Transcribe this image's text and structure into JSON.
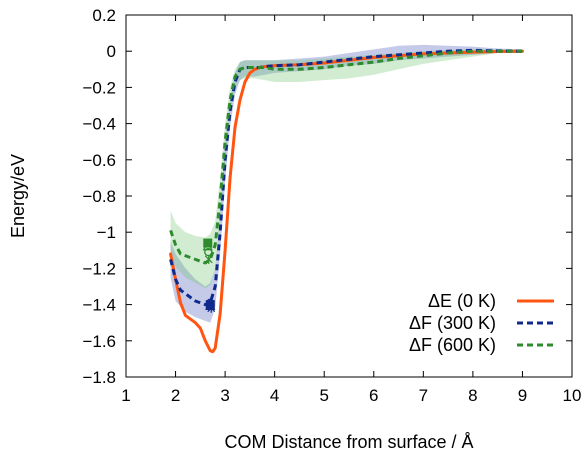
{
  "chart_data": {
    "type": "line",
    "title": "",
    "xlabel": "COM Distance from surface / Å",
    "ylabel": "Energy/eV",
    "xlim": [
      1,
      10
    ],
    "ylim": [
      -1.8,
      0.2
    ],
    "xticks": [
      1,
      2,
      3,
      4,
      5,
      6,
      7,
      8,
      9,
      10
    ],
    "yticks": [
      0.2,
      0,
      -0.2,
      -0.4,
      -0.6,
      -0.8,
      -1,
      -1.2,
      -1.4,
      -1.6,
      -1.8
    ],
    "xtick_labels": [
      "1",
      "2",
      "3",
      "4",
      "5",
      "6",
      "7",
      "8",
      "9",
      "10"
    ],
    "ytick_labels": [
      "0.2",
      "0",
      "−0.2",
      "−0.4",
      "−0.6",
      "−0.8",
      "−1",
      "−1.2",
      "−1.4",
      "−1.6",
      "−1.8"
    ],
    "grid": false,
    "legend_position": "bottom-right",
    "series": [
      {
        "name": "ΔE (0 K)",
        "style": "solid",
        "color": "#ff5511",
        "x": [
          1.9,
          2.0,
          2.1,
          2.2,
          2.3,
          2.4,
          2.5,
          2.6,
          2.7,
          2.75,
          2.8,
          2.9,
          3.0,
          3.1,
          3.2,
          3.3,
          3.4,
          3.5,
          3.6,
          3.7,
          3.8,
          4.0,
          4.5,
          5.0,
          5.5,
          6.0,
          6.5,
          7.0,
          7.5,
          8.0,
          8.5,
          9.0
        ],
        "y": [
          -1.12,
          -1.26,
          -1.39,
          -1.46,
          -1.48,
          -1.5,
          -1.53,
          -1.6,
          -1.655,
          -1.66,
          -1.64,
          -1.45,
          -1.1,
          -0.7,
          -0.42,
          -0.27,
          -0.17,
          -0.12,
          -0.1,
          -0.09,
          -0.085,
          -0.08,
          -0.075,
          -0.065,
          -0.05,
          -0.035,
          -0.025,
          -0.015,
          -0.01,
          -0.005,
          -0.002,
          0.0
        ]
      },
      {
        "name": "ΔF (300 K)",
        "style": "dashed",
        "color": "#102a8c",
        "x": [
          1.9,
          2.0,
          2.1,
          2.2,
          2.3,
          2.4,
          2.5,
          2.6,
          2.7,
          2.8,
          2.9,
          3.0,
          3.1,
          3.2,
          3.3,
          3.4,
          3.5,
          3.6,
          3.7,
          3.8,
          4.0,
          4.5,
          5.0,
          5.5,
          6.0,
          6.5,
          7.0,
          7.5,
          8.0,
          8.5,
          9.0
        ],
        "y": [
          -1.15,
          -1.26,
          -1.32,
          -1.34,
          -1.36,
          -1.38,
          -1.39,
          -1.4,
          -1.39,
          -1.3,
          -1.0,
          -0.6,
          -0.33,
          -0.17,
          -0.1,
          -0.09,
          -0.09,
          -0.09,
          -0.09,
          -0.085,
          -0.08,
          -0.075,
          -0.06,
          -0.045,
          -0.03,
          -0.02,
          -0.01,
          0.0,
          0.005,
          0.002,
          0.0
        ]
      },
      {
        "name": "ΔF (600 K)",
        "style": "dashed",
        "color": "#2e8b2e",
        "x": [
          1.9,
          2.0,
          2.1,
          2.2,
          2.3,
          2.4,
          2.5,
          2.6,
          2.7,
          2.8,
          2.9,
          3.0,
          3.1,
          3.2,
          3.3,
          3.4,
          3.5,
          3.6,
          3.7,
          3.8,
          4.0,
          4.5,
          5.0,
          5.5,
          6.0,
          6.5,
          7.0,
          7.5,
          8.0,
          8.5,
          9.0
        ],
        "y": [
          -0.99,
          -1.07,
          -1.12,
          -1.13,
          -1.14,
          -1.15,
          -1.16,
          -1.17,
          -1.15,
          -1.07,
          -0.82,
          -0.5,
          -0.27,
          -0.14,
          -0.1,
          -0.09,
          -0.09,
          -0.09,
          -0.09,
          -0.09,
          -0.1,
          -0.1,
          -0.09,
          -0.075,
          -0.06,
          -0.04,
          -0.025,
          -0.01,
          0.0,
          0.0,
          0.0
        ]
      }
    ],
    "bands": [
      {
        "series": "ΔF (300 K)",
        "color": "#5566bb",
        "opacity": 0.35,
        "x": [
          1.9,
          2.0,
          2.2,
          2.4,
          2.6,
          2.7,
          2.8,
          2.9,
          3.0,
          3.1,
          3.2,
          3.3,
          3.4,
          3.5,
          3.6,
          3.8,
          4.0,
          4.5,
          5.0,
          5.5,
          6.0,
          6.5,
          7.0,
          7.5,
          8.0,
          8.5,
          9.0
        ],
        "upper": [
          -1.05,
          -1.12,
          -1.2,
          -1.26,
          -1.3,
          -1.28,
          -1.2,
          -0.9,
          -0.52,
          -0.27,
          -0.12,
          -0.06,
          -0.05,
          -0.05,
          -0.05,
          -0.05,
          -0.05,
          -0.04,
          -0.03,
          -0.01,
          0.01,
          0.03,
          0.035,
          0.03,
          0.025,
          0.015,
          0.01
        ],
        "lower": [
          -1.25,
          -1.38,
          -1.44,
          -1.47,
          -1.49,
          -1.5,
          -1.42,
          -1.12,
          -0.72,
          -0.42,
          -0.24,
          -0.16,
          -0.14,
          -0.14,
          -0.14,
          -0.13,
          -0.12,
          -0.11,
          -0.1,
          -0.08,
          -0.07,
          -0.05,
          -0.04,
          -0.03,
          -0.02,
          -0.01,
          -0.01
        ]
      },
      {
        "series": "ΔF (600 K)",
        "color": "#6fc46f",
        "opacity": 0.32,
        "x": [
          1.9,
          2.0,
          2.2,
          2.4,
          2.6,
          2.7,
          2.8,
          2.9,
          3.0,
          3.1,
          3.2,
          3.3,
          3.4,
          3.5,
          3.6,
          3.8,
          4.0,
          4.5,
          5.0,
          5.5,
          6.0,
          6.5,
          7.0,
          7.5,
          8.0,
          8.5,
          9.0
        ],
        "upper": [
          -0.88,
          -0.95,
          -1.0,
          -1.02,
          -1.03,
          -1.01,
          -0.94,
          -0.7,
          -0.4,
          -0.2,
          -0.1,
          -0.06,
          -0.05,
          -0.05,
          -0.05,
          -0.05,
          -0.05,
          -0.05,
          -0.04,
          -0.03,
          -0.02,
          -0.01,
          0.0,
          0.005,
          0.01,
          0.01,
          0.01
        ],
        "lower": [
          -1.1,
          -1.19,
          -1.25,
          -1.28,
          -1.31,
          -1.29,
          -1.2,
          -0.94,
          -0.6,
          -0.34,
          -0.2,
          -0.16,
          -0.15,
          -0.15,
          -0.15,
          -0.16,
          -0.17,
          -0.17,
          -0.16,
          -0.15,
          -0.13,
          -0.1,
          -0.07,
          -0.05,
          -0.03,
          -0.01,
          -0.01
        ]
      }
    ],
    "markers": [
      {
        "series": "ΔF (300 K)",
        "color": "#102a8c",
        "points": [
          {
            "shape": "square",
            "x": 2.7,
            "y": -1.4
          },
          {
            "shape": "circle",
            "x": 2.7,
            "y": -1.39
          },
          {
            "shape": "triangle",
            "x": 2.7,
            "y": -1.41
          },
          {
            "shape": "cross",
            "x": 2.72,
            "y": -1.42
          }
        ]
      },
      {
        "series": "ΔF (600 K)",
        "color": "#2e8b2e",
        "points": [
          {
            "shape": "square",
            "x": 2.65,
            "y": -1.06
          },
          {
            "shape": "triangle",
            "x": 2.65,
            "y": -1.08
          },
          {
            "shape": "circle",
            "x": 2.66,
            "y": -1.11
          },
          {
            "shape": "cross",
            "x": 2.67,
            "y": -1.15
          }
        ]
      }
    ]
  }
}
